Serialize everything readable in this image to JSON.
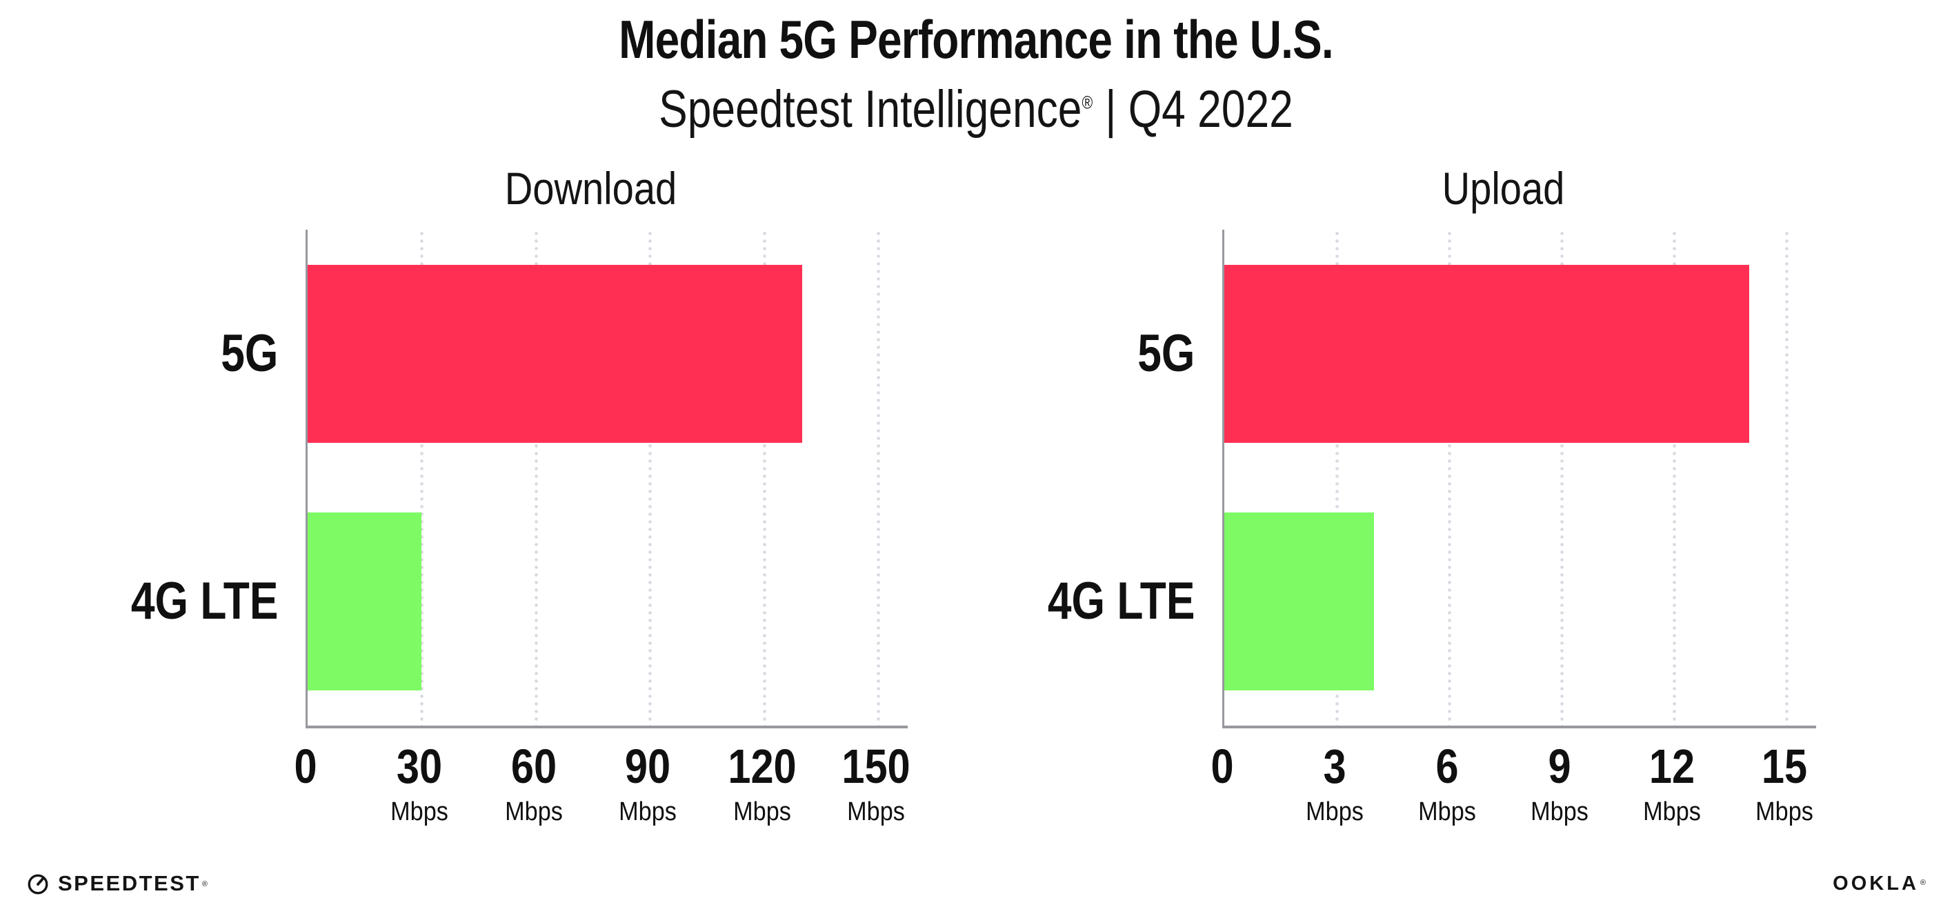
{
  "header": {
    "title": "Median 5G Performance in the U.S.",
    "subtitle_brand": "Speedtest Intelligence",
    "subtitle_reg": "®",
    "subtitle_rest": "| Q4 2022"
  },
  "chart_data": [
    {
      "type": "bar",
      "orientation": "horizontal",
      "title": "Download",
      "categories": [
        "5G",
        "4G LTE"
      ],
      "values": [
        130,
        30
      ],
      "unit": "Mbps",
      "xlabel": "",
      "ylabel": "",
      "xlim": [
        0,
        150
      ],
      "xticks": [
        0,
        30,
        60,
        90,
        120,
        150
      ],
      "grid": "vertical-dotted",
      "legend": "none",
      "bar_colors": [
        "#ff2f54",
        "#7dfa64"
      ]
    },
    {
      "type": "bar",
      "orientation": "horizontal",
      "title": "Upload",
      "categories": [
        "5G",
        "4G LTE"
      ],
      "values": [
        14,
        4
      ],
      "unit": "Mbps",
      "xlabel": "",
      "ylabel": "",
      "xlim": [
        0,
        15
      ],
      "xticks": [
        0,
        3,
        6,
        9,
        12,
        15
      ],
      "grid": "vertical-dotted",
      "legend": "none",
      "bar_colors": [
        "#ff2f54",
        "#7dfa64"
      ]
    }
  ],
  "footer": {
    "speedtest_label": "SPEEDTEST",
    "speedtest_reg": "®",
    "ookla_label": "OOKLA",
    "ookla_reg": "®"
  },
  "colors": {
    "bar_5g": "#ff2f54",
    "bar_4g_lte": "#7dfa64",
    "axis": "#98989e",
    "grid_dots": "#d9d9e2",
    "text": "#101010"
  }
}
